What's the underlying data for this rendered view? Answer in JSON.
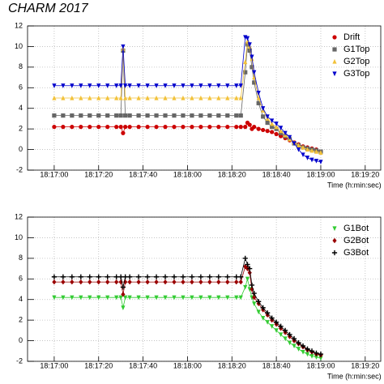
{
  "chart_data": [
    {
      "type": "line",
      "title": "CHARM 2017",
      "x_label": "Time (h:min:sec)",
      "grid": true,
      "legend": "top-right",
      "xlim": [
        "18:16:48",
        "18:19:27"
      ],
      "xticks": [
        "18:17:00",
        "18:17:20",
        "18:17:40",
        "18:18:00",
        "18:18:20",
        "18:18:40",
        "18:19:00",
        "18:19:20"
      ],
      "ylim": [
        -2,
        12
      ],
      "yticks": [
        -2,
        0,
        2,
        4,
        6,
        8,
        10,
        12
      ],
      "x": [
        "18:17:00",
        "18:17:04",
        "18:17:08",
        "18:17:12",
        "18:17:16",
        "18:17:20",
        "18:17:24",
        "18:17:28",
        "18:17:30",
        "18:17:31",
        "18:17:32",
        "18:17:34",
        "18:17:38",
        "18:17:42",
        "18:17:46",
        "18:17:50",
        "18:17:54",
        "18:17:58",
        "18:18:02",
        "18:18:06",
        "18:18:10",
        "18:18:14",
        "18:18:18",
        "18:18:22",
        "18:18:24",
        "18:18:26",
        "18:18:27",
        "18:18:28",
        "18:18:29",
        "18:18:30",
        "18:18:32",
        "18:18:34",
        "18:18:36",
        "18:18:38",
        "18:18:40",
        "18:18:42",
        "18:18:44",
        "18:18:46",
        "18:18:48",
        "18:18:50",
        "18:18:52",
        "18:18:54",
        "18:18:56",
        "18:18:58",
        "18:19:00"
      ],
      "series": [
        {
          "name": "Drift",
          "color": "#cc0000",
          "marker": "circle",
          "values": [
            2.2,
            2.2,
            2.2,
            2.2,
            2.2,
            2.2,
            2.2,
            2.2,
            2.2,
            1.6,
            2.2,
            2.2,
            2.2,
            2.2,
            2.2,
            2.2,
            2.2,
            2.2,
            2.2,
            2.2,
            2.2,
            2.2,
            2.2,
            2.2,
            2.2,
            2.2,
            2.6,
            2.4,
            2.0,
            2.2,
            2.0,
            1.9,
            1.8,
            1.7,
            1.5,
            1.3,
            1.1,
            0.9,
            0.7,
            0.5,
            0.3,
            0.2,
            0.1,
            0,
            -0.2
          ]
        },
        {
          "name": "G1Top",
          "color": "#666666",
          "marker": "square",
          "values": [
            3.3,
            3.3,
            3.3,
            3.3,
            3.3,
            3.3,
            3.3,
            3.3,
            3.3,
            9.6,
            3.3,
            3.3,
            3.3,
            3.3,
            3.3,
            3.3,
            3.3,
            3.3,
            3.3,
            3.3,
            3.3,
            3.3,
            3.3,
            3.3,
            3.3,
            7.5,
            10.2,
            9.6,
            8.0,
            6.5,
            4.5,
            3.2,
            2.6,
            2.2,
            2.0,
            1.6,
            1.3,
            1.0,
            0.6,
            0.4,
            0.2,
            0.1,
            0,
            -0.1,
            -0.2
          ]
        },
        {
          "name": "G2Top",
          "color": "#f2c23a",
          "marker": "triangle-up",
          "values": [
            5.0,
            5.0,
            5.0,
            5.0,
            5.0,
            5.0,
            5.0,
            5.0,
            5.0,
            9.8,
            5.0,
            5.0,
            5.0,
            5.0,
            5.0,
            5.0,
            5.0,
            5.0,
            5.0,
            5.0,
            5.0,
            5.0,
            5.0,
            5.0,
            5.0,
            8.5,
            10.5,
            10.0,
            8.8,
            7.0,
            5.0,
            3.8,
            3.0,
            2.5,
            2.2,
            1.8,
            1.4,
            1.0,
            0.7,
            0.4,
            0.2,
            0,
            -0.1,
            -0.2,
            -0.3
          ]
        },
        {
          "name": "G3Top",
          "color": "#0000cc",
          "marker": "triangle-down",
          "values": [
            6.2,
            6.2,
            6.2,
            6.2,
            6.2,
            6.2,
            6.2,
            6.2,
            6.2,
            10.0,
            6.2,
            6.2,
            6.2,
            6.2,
            6.2,
            6.2,
            6.2,
            6.2,
            6.2,
            6.2,
            6.2,
            6.2,
            6.2,
            6.2,
            6.2,
            10.9,
            10.8,
            10.2,
            9.0,
            7.5,
            5.5,
            4.0,
            3.2,
            2.8,
            2.5,
            2.1,
            1.6,
            1.2,
            0.6,
            0,
            -0.5,
            -0.8,
            -1.0,
            -1.1,
            -1.2
          ]
        }
      ]
    },
    {
      "type": "line",
      "x_label": "Time (h:min:sec)",
      "grid": true,
      "legend": "top-right",
      "xlim": [
        "18:16:48",
        "18:19:27"
      ],
      "xticks": [
        "18:17:00",
        "18:17:20",
        "18:17:40",
        "18:18:00",
        "18:18:20",
        "18:18:40",
        "18:19:00",
        "18:19:20"
      ],
      "ylim": [
        -2,
        12
      ],
      "yticks": [
        -2,
        0,
        2,
        4,
        6,
        8,
        10,
        12
      ],
      "x": [
        "18:17:00",
        "18:17:04",
        "18:17:08",
        "18:17:12",
        "18:17:16",
        "18:17:20",
        "18:17:24",
        "18:17:28",
        "18:17:30",
        "18:17:31",
        "18:17:32",
        "18:17:34",
        "18:17:38",
        "18:17:42",
        "18:17:46",
        "18:17:50",
        "18:17:54",
        "18:17:58",
        "18:18:02",
        "18:18:06",
        "18:18:10",
        "18:18:14",
        "18:18:18",
        "18:18:22",
        "18:18:24",
        "18:18:26",
        "18:18:27",
        "18:18:28",
        "18:18:29",
        "18:18:30",
        "18:18:32",
        "18:18:34",
        "18:18:36",
        "18:18:38",
        "18:18:40",
        "18:18:42",
        "18:18:44",
        "18:18:46",
        "18:18:48",
        "18:18:50",
        "18:18:52",
        "18:18:54",
        "18:18:56",
        "18:18:58",
        "18:19:00"
      ],
      "series": [
        {
          "name": "G1Bot",
          "color": "#33cc33",
          "marker": "triangle-down",
          "values": [
            4.2,
            4.2,
            4.2,
            4.2,
            4.2,
            4.2,
            4.2,
            4.2,
            4.2,
            3.2,
            4.2,
            4.2,
            4.2,
            4.2,
            4.2,
            4.2,
            4.2,
            4.2,
            4.2,
            4.2,
            4.2,
            4.2,
            4.2,
            4.2,
            4.2,
            5.2,
            6.0,
            5.0,
            4.2,
            3.6,
            2.8,
            2.2,
            1.8,
            1.4,
            1.0,
            0.6,
            0.2,
            -0.2,
            -0.5,
            -0.8,
            -1.1,
            -1.3,
            -1.5,
            -1.6,
            -1.7
          ]
        },
        {
          "name": "G2Bot",
          "color": "#990000",
          "marker": "diamond",
          "values": [
            5.7,
            5.7,
            5.7,
            5.7,
            5.7,
            5.7,
            5.7,
            5.7,
            5.7,
            4.5,
            5.7,
            5.7,
            5.7,
            5.7,
            5.7,
            5.7,
            5.7,
            5.7,
            5.7,
            5.7,
            5.7,
            5.7,
            5.7,
            5.7,
            5.7,
            7.2,
            7.0,
            6.6,
            5.0,
            4.2,
            3.6,
            3.0,
            2.5,
            2.0,
            1.6,
            1.2,
            0.8,
            0.4,
            0,
            -0.3,
            -0.6,
            -0.9,
            -1.1,
            -1.3,
            -1.4
          ]
        },
        {
          "name": "G3Bot",
          "color": "#000000",
          "marker": "plus",
          "values": [
            6.2,
            6.2,
            6.2,
            6.2,
            6.2,
            6.2,
            6.2,
            6.2,
            6.2,
            5.2,
            6.2,
            6.2,
            6.2,
            6.2,
            6.2,
            6.2,
            6.2,
            6.2,
            6.2,
            6.2,
            6.2,
            6.2,
            6.2,
            6.2,
            6.2,
            8.0,
            7.4,
            7.0,
            5.4,
            4.6,
            3.8,
            3.2,
            2.7,
            2.2,
            1.8,
            1.4,
            1.0,
            0.6,
            0.2,
            -0.2,
            -0.5,
            -0.8,
            -1.0,
            -1.2,
            -1.3
          ]
        }
      ]
    }
  ]
}
